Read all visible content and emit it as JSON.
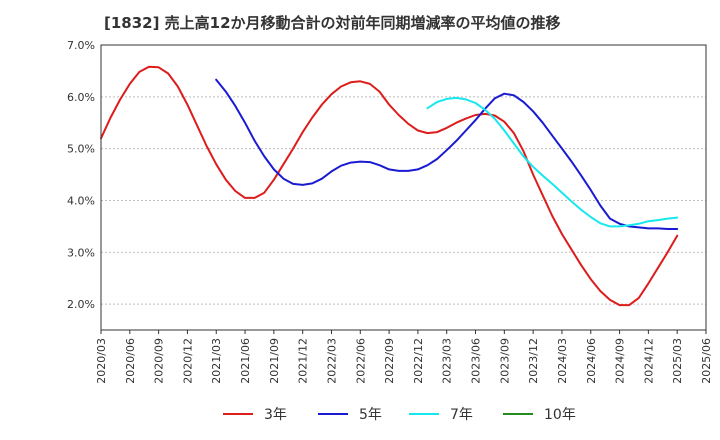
{
  "chart_data": {
    "type": "line",
    "title": "[1832]  売上高12か月移動合計の対前年同期増減率の平均値の推移",
    "xlabel": "",
    "ylabel": "",
    "ylim": [
      1.5,
      7.0
    ],
    "yticks": [
      2.0,
      3.0,
      4.0,
      5.0,
      6.0,
      7.0
    ],
    "ytick_labels": [
      "2.0%",
      "3.0%",
      "4.0%",
      "5.0%",
      "6.0%",
      "7.0%"
    ],
    "xticks": [
      "2020/03",
      "2020/06",
      "2020/09",
      "2020/12",
      "2021/03",
      "2021/06",
      "2021/09",
      "2021/12",
      "2022/03",
      "2022/06",
      "2022/09",
      "2022/12",
      "2023/03",
      "2023/06",
      "2023/09",
      "2023/12",
      "2024/03",
      "2024/06",
      "2024/09",
      "2024/12",
      "2025/03",
      "2025/06"
    ],
    "x_start": "2020/03",
    "x_end": "2025/06",
    "grid": "horizontal",
    "legend_position": "bottom",
    "series": [
      {
        "name": "3年",
        "color": "#dd1c1c",
        "points": [
          [
            "2020/03",
            5.2
          ],
          [
            "2020/04",
            5.6
          ],
          [
            "2020/05",
            5.95
          ],
          [
            "2020/06",
            6.25
          ],
          [
            "2020/07",
            6.48
          ],
          [
            "2020/08",
            6.58
          ],
          [
            "2020/09",
            6.57
          ],
          [
            "2020/10",
            6.45
          ],
          [
            "2020/11",
            6.2
          ],
          [
            "2020/12",
            5.85
          ],
          [
            "2021/01",
            5.45
          ],
          [
            "2021/02",
            5.05
          ],
          [
            "2021/03",
            4.7
          ],
          [
            "2021/04",
            4.4
          ],
          [
            "2021/05",
            4.18
          ],
          [
            "2021/06",
            4.05
          ],
          [
            "2021/07",
            4.05
          ],
          [
            "2021/08",
            4.15
          ],
          [
            "2021/09",
            4.4
          ],
          [
            "2021/10",
            4.7
          ],
          [
            "2021/11",
            5.0
          ],
          [
            "2021/12",
            5.32
          ],
          [
            "2022/01",
            5.6
          ],
          [
            "2022/02",
            5.85
          ],
          [
            "2022/03",
            6.05
          ],
          [
            "2022/04",
            6.2
          ],
          [
            "2022/05",
            6.28
          ],
          [
            "2022/06",
            6.3
          ],
          [
            "2022/07",
            6.25
          ],
          [
            "2022/08",
            6.1
          ],
          [
            "2022/09",
            5.85
          ],
          [
            "2022/10",
            5.65
          ],
          [
            "2022/11",
            5.48
          ],
          [
            "2022/12",
            5.35
          ],
          [
            "2023/01",
            5.3
          ],
          [
            "2023/02",
            5.32
          ],
          [
            "2023/03",
            5.4
          ],
          [
            "2023/04",
            5.5
          ],
          [
            "2023/05",
            5.58
          ],
          [
            "2023/06",
            5.65
          ],
          [
            "2023/07",
            5.67
          ],
          [
            "2023/08",
            5.64
          ],
          [
            "2023/09",
            5.52
          ],
          [
            "2023/10",
            5.3
          ],
          [
            "2023/11",
            4.95
          ],
          [
            "2023/12",
            4.5
          ],
          [
            "2024/01",
            4.1
          ],
          [
            "2024/02",
            3.7
          ],
          [
            "2024/03",
            3.35
          ],
          [
            "2024/04",
            3.05
          ],
          [
            "2024/05",
            2.75
          ],
          [
            "2024/06",
            2.48
          ],
          [
            "2024/07",
            2.25
          ],
          [
            "2024/08",
            2.08
          ],
          [
            "2024/09",
            1.98
          ],
          [
            "2024/10",
            1.98
          ],
          [
            "2024/11",
            2.12
          ],
          [
            "2024/12",
            2.4
          ],
          [
            "2025/01",
            2.7
          ],
          [
            "2025/02",
            3.0
          ],
          [
            "2025/03",
            3.32
          ]
        ]
      },
      {
        "name": "5年",
        "color": "#1a1ad2",
        "points": [
          [
            "2021/03",
            6.33
          ],
          [
            "2021/04",
            6.1
          ],
          [
            "2021/05",
            5.82
          ],
          [
            "2021/06",
            5.5
          ],
          [
            "2021/07",
            5.15
          ],
          [
            "2021/08",
            4.85
          ],
          [
            "2021/09",
            4.6
          ],
          [
            "2021/10",
            4.42
          ],
          [
            "2021/11",
            4.32
          ],
          [
            "2021/12",
            4.3
          ],
          [
            "2022/01",
            4.33
          ],
          [
            "2022/02",
            4.42
          ],
          [
            "2022/03",
            4.56
          ],
          [
            "2022/04",
            4.67
          ],
          [
            "2022/05",
            4.73
          ],
          [
            "2022/06",
            4.75
          ],
          [
            "2022/07",
            4.74
          ],
          [
            "2022/08",
            4.68
          ],
          [
            "2022/09",
            4.6
          ],
          [
            "2022/10",
            4.57
          ],
          [
            "2022/11",
            4.57
          ],
          [
            "2022/12",
            4.6
          ],
          [
            "2023/01",
            4.68
          ],
          [
            "2023/02",
            4.8
          ],
          [
            "2023/03",
            4.97
          ],
          [
            "2023/04",
            5.15
          ],
          [
            "2023/05",
            5.35
          ],
          [
            "2023/06",
            5.55
          ],
          [
            "2023/07",
            5.77
          ],
          [
            "2023/08",
            5.97
          ],
          [
            "2023/09",
            6.06
          ],
          [
            "2023/10",
            6.03
          ],
          [
            "2023/11",
            5.9
          ],
          [
            "2023/12",
            5.72
          ],
          [
            "2024/01",
            5.5
          ],
          [
            "2024/02",
            5.25
          ],
          [
            "2024/03",
            5.0
          ],
          [
            "2024/04",
            4.75
          ],
          [
            "2024/05",
            4.48
          ],
          [
            "2024/06",
            4.2
          ],
          [
            "2024/07",
            3.9
          ],
          [
            "2024/08",
            3.65
          ],
          [
            "2024/09",
            3.55
          ],
          [
            "2024/10",
            3.5
          ],
          [
            "2024/11",
            3.48
          ],
          [
            "2024/12",
            3.46
          ],
          [
            "2025/01",
            3.46
          ],
          [
            "2025/02",
            3.45
          ],
          [
            "2025/03",
            3.45
          ]
        ]
      },
      {
        "name": "7年",
        "color": "#16e8ee",
        "points": [
          [
            "2023/01",
            5.78
          ],
          [
            "2023/02",
            5.9
          ],
          [
            "2023/03",
            5.96
          ],
          [
            "2023/04",
            5.98
          ],
          [
            "2023/05",
            5.95
          ],
          [
            "2023/06",
            5.88
          ],
          [
            "2023/07",
            5.75
          ],
          [
            "2023/08",
            5.58
          ],
          [
            "2023/09",
            5.35
          ],
          [
            "2023/10",
            5.1
          ],
          [
            "2023/11",
            4.85
          ],
          [
            "2023/12",
            4.65
          ],
          [
            "2024/01",
            4.48
          ],
          [
            "2024/02",
            4.32
          ],
          [
            "2024/03",
            4.15
          ],
          [
            "2024/04",
            3.98
          ],
          [
            "2024/05",
            3.82
          ],
          [
            "2024/06",
            3.68
          ],
          [
            "2024/07",
            3.56
          ],
          [
            "2024/08",
            3.5
          ],
          [
            "2024/09",
            3.5
          ],
          [
            "2024/10",
            3.52
          ],
          [
            "2024/11",
            3.55
          ],
          [
            "2024/12",
            3.6
          ],
          [
            "2025/01",
            3.62
          ],
          [
            "2025/02",
            3.65
          ],
          [
            "2025/03",
            3.67
          ]
        ]
      },
      {
        "name": "10年",
        "color": "#228b22",
        "points": []
      }
    ]
  }
}
